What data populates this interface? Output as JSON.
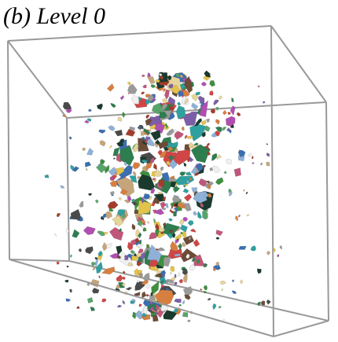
{
  "caption": "(b) Level 0",
  "scene": {
    "box_edge_color": "#999999",
    "fragment_palette": [
      "#2e7d4f",
      "#7b5ea7",
      "#c0577a",
      "#3a6fb0",
      "#e3c34a",
      "#1b3a2e",
      "#9a9a9a",
      "#d77f3f",
      "#5aa46b",
      "#c7a57a",
      "#6d4b36",
      "#2fa0a0",
      "#d04646",
      "#e6d59a",
      "#4a4a4a",
      "#8fb1d8",
      "#b04fb0",
      "#f0f0f0",
      "#3e8f3e",
      "#a33c2b"
    ],
    "seed": 1337
  }
}
